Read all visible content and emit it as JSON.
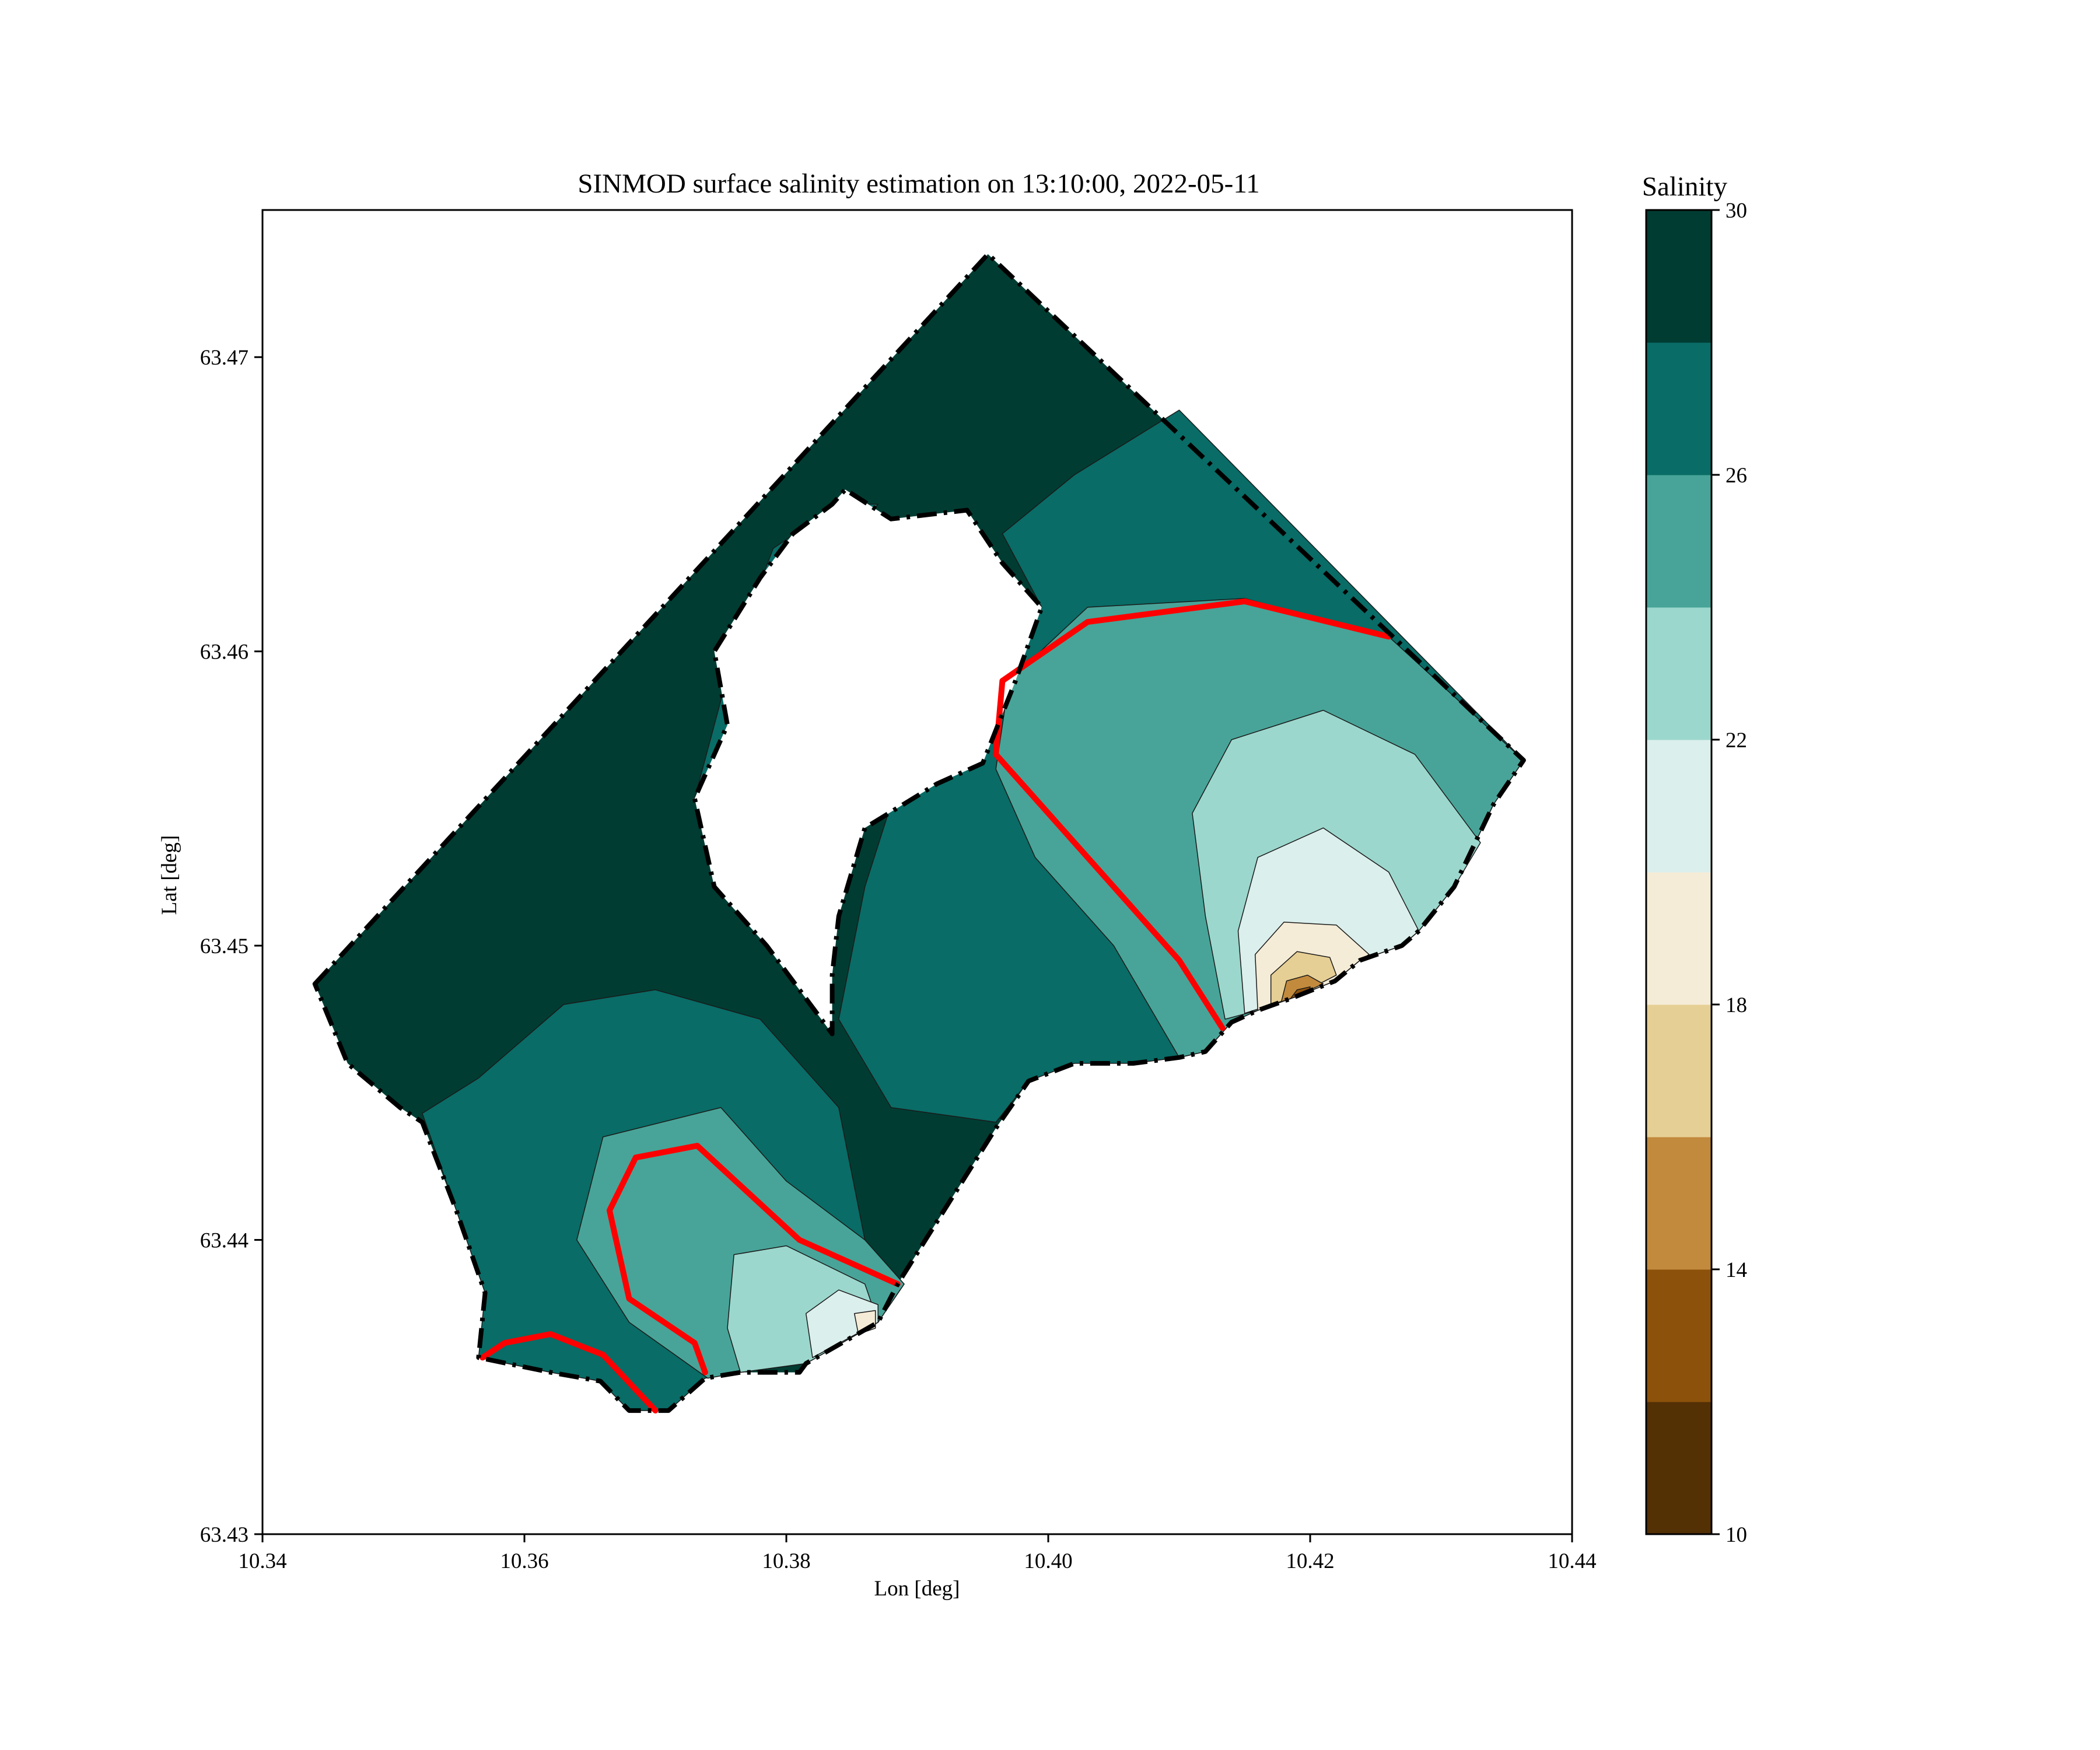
{
  "chart_data": {
    "type": "heatmap",
    "title": "SINMOD surface salinity estimation on 13:10:00, 2022-05-11",
    "xlabel": "Lon [deg]",
    "ylabel": "Lat [deg]",
    "xlim": [
      10.34,
      10.44
    ],
    "ylim": [
      63.43,
      63.475
    ],
    "x_ticks": [
      "10.34",
      "10.36",
      "10.38",
      "10.40",
      "10.42",
      "10.44"
    ],
    "y_ticks": [
      "63.43",
      "63.44",
      "63.45",
      "63.46",
      "63.47"
    ],
    "grid": false,
    "colorbar": {
      "label": "Salinity",
      "range": [
        10,
        30
      ],
      "tick_labels": [
        "10",
        "14",
        "18",
        "22",
        "26",
        "30"
      ],
      "levels": [
        10,
        12,
        14,
        16,
        18,
        20,
        22,
        24,
        26,
        28,
        30
      ],
      "colors": [
        "#543005",
        "#8c510a",
        "#c28a3d",
        "#e6cf94",
        "#f5ecd7",
        "#dbefec",
        "#9bd7cd",
        "#48a498",
        "#096c66",
        "#003c32"
      ]
    },
    "highlight_contour": {
      "color": "#ff0000"
    },
    "boundary": {
      "style": "dash-dot",
      "polygon": [
        [
          10.344,
          63.4487
        ],
        [
          10.3954,
          63.4735
        ],
        [
          10.4363,
          63.4563
        ],
        [
          10.434,
          63.4548
        ],
        [
          10.431,
          63.452
        ],
        [
          10.4283,
          63.4505
        ],
        [
          10.427,
          63.45
        ],
        [
          10.4238,
          63.4495
        ],
        [
          10.4219,
          63.4488
        ],
        [
          10.4185,
          63.4482
        ],
        [
          10.416,
          63.4478
        ],
        [
          10.414,
          63.4474
        ],
        [
          10.412,
          63.4464
        ],
        [
          10.41,
          63.4462
        ],
        [
          10.4065,
          63.446
        ],
        [
          10.402,
          63.446
        ],
        [
          10.3985,
          63.4454
        ],
        [
          10.396,
          63.4438
        ],
        [
          10.3885,
          63.4385
        ],
        [
          10.387,
          63.4372
        ],
        [
          10.3815,
          63.4358
        ],
        [
          10.381,
          63.4355
        ],
        [
          10.3765,
          63.4355
        ],
        [
          10.3738,
          63.4353
        ],
        [
          10.371,
          63.4342
        ],
        [
          10.368,
          63.4342
        ],
        [
          10.3658,
          63.4352
        ],
        [
          10.362,
          63.4355
        ],
        [
          10.3565,
          63.436
        ],
        [
          10.357,
          63.4382
        ],
        [
          10.3548,
          63.441
        ],
        [
          10.3522,
          63.444
        ],
        [
          10.3505,
          63.4445
        ],
        [
          10.3465,
          63.446
        ],
        [
          10.344,
          63.4487
        ]
      ],
      "hole": [
        [
          10.3805,
          63.464
        ],
        [
          10.3835,
          63.465
        ],
        [
          10.3845,
          63.4655
        ],
        [
          10.388,
          63.4645
        ],
        [
          10.3938,
          63.4648
        ],
        [
          10.3965,
          63.463
        ],
        [
          10.3995,
          63.4615
        ],
        [
          10.3975,
          63.459
        ],
        [
          10.395,
          63.4562
        ],
        [
          10.3915,
          63.4555
        ],
        [
          10.386,
          63.454
        ],
        [
          10.384,
          63.451
        ],
        [
          10.3835,
          63.449
        ],
        [
          10.3835,
          63.447
        ],
        [
          10.3785,
          63.45
        ],
        [
          10.3745,
          63.452
        ],
        [
          10.373,
          63.455
        ],
        [
          10.3755,
          63.4575
        ],
        [
          10.3745,
          63.46
        ],
        [
          10.378,
          63.4625
        ],
        [
          10.3805,
          63.464
        ]
      ]
    },
    "regions": [
      {
        "level": 28,
        "polygon": [
          [
            10.344,
            63.4487
          ],
          [
            10.3954,
            63.4735
          ],
          [
            10.4363,
            63.4563
          ],
          [
            10.434,
            63.4548
          ],
          [
            10.431,
            63.452
          ],
          [
            10.4283,
            63.4505
          ],
          [
            10.427,
            63.45
          ],
          [
            10.4238,
            63.4495
          ],
          [
            10.4219,
            63.4488
          ],
          [
            10.4185,
            63.4482
          ],
          [
            10.416,
            63.4478
          ],
          [
            10.414,
            63.4474
          ],
          [
            10.412,
            63.4464
          ],
          [
            10.41,
            63.4462
          ],
          [
            10.4065,
            63.446
          ],
          [
            10.402,
            63.446
          ],
          [
            10.3985,
            63.4454
          ],
          [
            10.396,
            63.4438
          ],
          [
            10.3885,
            63.4385
          ],
          [
            10.387,
            63.4372
          ],
          [
            10.3815,
            63.4358
          ],
          [
            10.381,
            63.4355
          ],
          [
            10.3765,
            63.4355
          ],
          [
            10.3738,
            63.4353
          ],
          [
            10.371,
            63.4342
          ],
          [
            10.368,
            63.4342
          ],
          [
            10.3658,
            63.4352
          ],
          [
            10.362,
            63.4355
          ],
          [
            10.3565,
            63.436
          ],
          [
            10.357,
            63.4382
          ],
          [
            10.3548,
            63.441
          ],
          [
            10.3522,
            63.444
          ],
          [
            10.3505,
            63.4445
          ],
          [
            10.3465,
            63.446
          ],
          [
            10.344,
            63.4487
          ]
        ]
      },
      {
        "level": 26,
        "polygon": [
          [
            10.3522,
            63.4443
          ],
          [
            10.3565,
            63.4455
          ],
          [
            10.363,
            63.448
          ],
          [
            10.37,
            63.4485
          ],
          [
            10.378,
            63.4475
          ],
          [
            10.384,
            63.4445
          ],
          [
            10.386,
            63.44
          ],
          [
            10.389,
            63.4385
          ],
          [
            10.387,
            63.4372
          ],
          [
            10.3815,
            63.4358
          ],
          [
            10.3765,
            63.4355
          ],
          [
            10.3738,
            63.4353
          ],
          [
            10.371,
            63.4342
          ],
          [
            10.368,
            63.4342
          ],
          [
            10.3658,
            63.4352
          ],
          [
            10.362,
            63.4355
          ],
          [
            10.3565,
            63.436
          ],
          [
            10.357,
            63.4382
          ],
          [
            10.3548,
            63.441
          ],
          [
            10.3522,
            63.4443
          ]
        ]
      },
      {
        "level": 26,
        "polygon": [
          [
            10.41,
            63.4682
          ],
          [
            10.4363,
            63.4563
          ],
          [
            10.434,
            63.4548
          ],
          [
            10.431,
            63.452
          ],
          [
            10.4283,
            63.4505
          ],
          [
            10.427,
            63.45
          ],
          [
            10.4238,
            63.4495
          ],
          [
            10.4219,
            63.4488
          ],
          [
            10.4185,
            63.4482
          ],
          [
            10.416,
            63.4478
          ],
          [
            10.414,
            63.4474
          ],
          [
            10.412,
            63.4464
          ],
          [
            10.41,
            63.4462
          ],
          [
            10.4065,
            63.446
          ],
          [
            10.402,
            63.446
          ],
          [
            10.3985,
            63.4454
          ],
          [
            10.396,
            63.444
          ],
          [
            10.388,
            63.4445
          ],
          [
            10.384,
            63.4475
          ],
          [
            10.386,
            63.452
          ],
          [
            10.3885,
            63.4555
          ],
          [
            10.396,
            63.459
          ],
          [
            10.3995,
            63.4615
          ],
          [
            10.3965,
            63.464
          ],
          [
            10.402,
            63.466
          ],
          [
            10.41,
            63.4682
          ]
        ]
      },
      {
        "level": 26,
        "polygon": [
          [
            10.373,
            63.455
          ],
          [
            10.376,
            63.46
          ],
          [
            10.379,
            63.4635
          ],
          [
            10.384,
            63.465
          ],
          [
            10.387,
            63.465
          ],
          [
            10.383,
            63.463
          ],
          [
            10.379,
            63.459
          ],
          [
            10.376,
            63.456
          ],
          [
            10.373,
            63.455
          ]
        ]
      },
      {
        "level": 24,
        "polygon": [
          [
            10.374,
            63.4353
          ],
          [
            10.368,
            63.4372
          ],
          [
            10.364,
            63.44
          ],
          [
            10.366,
            63.4435
          ],
          [
            10.375,
            63.4445
          ],
          [
            10.38,
            63.442
          ],
          [
            10.386,
            63.44
          ],
          [
            10.389,
            63.4385
          ],
          [
            10.387,
            63.4372
          ],
          [
            10.3815,
            63.4358
          ],
          [
            10.3765,
            63.4355
          ],
          [
            10.374,
            63.4353
          ]
        ]
      },
      {
        "level": 24,
        "polygon": [
          [
            10.41,
            63.4462
          ],
          [
            10.405,
            63.45
          ],
          [
            10.399,
            63.453
          ],
          [
            10.396,
            63.456
          ],
          [
            10.397,
            63.459
          ],
          [
            10.403,
            63.4615
          ],
          [
            10.415,
            63.4618
          ],
          [
            10.426,
            63.4605
          ],
          [
            10.4363,
            63.4563
          ],
          [
            10.434,
            63.4548
          ],
          [
            10.431,
            63.452
          ],
          [
            10.4283,
            63.4505
          ],
          [
            10.427,
            63.45
          ],
          [
            10.4238,
            63.4495
          ],
          [
            10.4219,
            63.4488
          ],
          [
            10.4185,
            63.4482
          ],
          [
            10.416,
            63.4478
          ],
          [
            10.414,
            63.4474
          ],
          [
            10.412,
            63.4464
          ],
          [
            10.41,
            63.4462
          ]
        ]
      },
      {
        "level": 22,
        "polygon": [
          [
            10.3765,
            63.4355
          ],
          [
            10.3755,
            63.437
          ],
          [
            10.376,
            63.4395
          ],
          [
            10.38,
            63.4398
          ],
          [
            10.386,
            63.4385
          ],
          [
            10.387,
            63.4372
          ],
          [
            10.3815,
            63.4358
          ],
          [
            10.3765,
            63.4355
          ]
        ]
      },
      {
        "level": 22,
        "polygon": [
          [
            10.4135,
            63.4475
          ],
          [
            10.412,
            63.451
          ],
          [
            10.411,
            63.4545
          ],
          [
            10.414,
            63.457
          ],
          [
            10.421,
            63.458
          ],
          [
            10.428,
            63.4565
          ],
          [
            10.433,
            63.4535
          ],
          [
            10.431,
            63.452
          ],
          [
            10.4283,
            63.4505
          ],
          [
            10.427,
            63.45
          ],
          [
            10.4238,
            63.4495
          ],
          [
            10.4219,
            63.4488
          ],
          [
            10.4185,
            63.4482
          ],
          [
            10.416,
            63.4478
          ],
          [
            10.4135,
            63.4475
          ]
        ]
      },
      {
        "level": 20,
        "polygon": [
          [
            10.382,
            63.436
          ],
          [
            10.3815,
            63.4375
          ],
          [
            10.384,
            63.4383
          ],
          [
            10.387,
            63.4378
          ],
          [
            10.387,
            63.4372
          ],
          [
            10.382,
            63.436
          ]
        ]
      },
      {
        "level": 20,
        "polygon": [
          [
            10.415,
            63.4477
          ],
          [
            10.4145,
            63.4505
          ],
          [
            10.416,
            63.453
          ],
          [
            10.421,
            63.454
          ],
          [
            10.426,
            63.4525
          ],
          [
            10.4283,
            63.4505
          ],
          [
            10.427,
            63.45
          ],
          [
            10.4238,
            63.4495
          ],
          [
            10.4219,
            63.4488
          ],
          [
            10.4185,
            63.4482
          ],
          [
            10.415,
            63.4477
          ]
        ]
      },
      {
        "level": 18,
        "polygon": [
          [
            10.3855,
            63.4368
          ],
          [
            10.3852,
            63.4375
          ],
          [
            10.3868,
            63.4376
          ],
          [
            10.3868,
            63.437
          ],
          [
            10.3855,
            63.4368
          ]
        ]
      },
      {
        "level": 18,
        "polygon": [
          [
            10.416,
            63.4478
          ],
          [
            10.4158,
            63.4497
          ],
          [
            10.418,
            63.4508
          ],
          [
            10.422,
            63.4507
          ],
          [
            10.4245,
            63.4497
          ],
          [
            10.4238,
            63.4495
          ],
          [
            10.4219,
            63.4488
          ],
          [
            10.4185,
            63.4482
          ],
          [
            10.416,
            63.4478
          ]
        ]
      },
      {
        "level": 16,
        "polygon": [
          [
            10.417,
            63.448
          ],
          [
            10.417,
            63.449
          ],
          [
            10.419,
            63.4498
          ],
          [
            10.4215,
            63.4496
          ],
          [
            10.422,
            63.449
          ],
          [
            10.4185,
            63.4482
          ],
          [
            10.417,
            63.448
          ]
        ]
      },
      {
        "level": 14,
        "polygon": [
          [
            10.4178,
            63.4481
          ],
          [
            10.4182,
            63.4488
          ],
          [
            10.4198,
            63.449
          ],
          [
            10.421,
            63.4487
          ],
          [
            10.4185,
            63.4482
          ],
          [
            10.4178,
            63.4481
          ]
        ]
      },
      {
        "level": 12,
        "polygon": [
          [
            10.4185,
            63.4482
          ],
          [
            10.419,
            63.4485
          ],
          [
            10.42,
            63.4486
          ],
          [
            10.4199,
            63.4484
          ],
          [
            10.4185,
            63.4482
          ]
        ]
      }
    ],
    "highlight_lines": [
      [
        [
          10.3568,
          63.436
        ],
        [
          10.3585,
          63.4365
        ],
        [
          10.362,
          63.4368
        ],
        [
          10.366,
          63.4361
        ],
        [
          10.37,
          63.4342
        ]
      ],
      [
        [
          10.3738,
          63.4355
        ],
        [
          10.373,
          63.4365
        ],
        [
          10.368,
          63.438
        ],
        [
          10.3665,
          63.441
        ],
        [
          10.3685,
          63.4428
        ],
        [
          10.3732,
          63.4432
        ],
        [
          10.381,
          63.44
        ],
        [
          10.3885,
          63.4385
        ]
      ],
      [
        [
          10.4133,
          63.4472
        ],
        [
          10.41,
          63.4495
        ],
        [
          10.401,
          63.454
        ],
        [
          10.396,
          63.4565
        ],
        [
          10.3965,
          63.459
        ],
        [
          10.403,
          63.461
        ],
        [
          10.415,
          63.4617
        ],
        [
          10.426,
          63.4605
        ]
      ]
    ]
  }
}
